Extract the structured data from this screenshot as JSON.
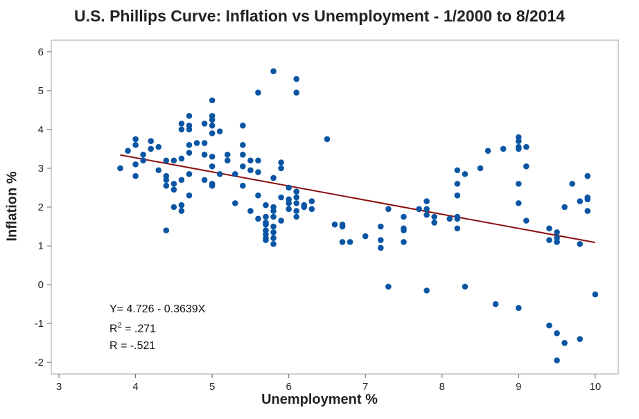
{
  "chart_data": {
    "type": "scatter",
    "title": "U.S. Phillips Curve: Inflation vs Unemployment - 1/2000 to 8/2014",
    "xlabel": "Unemployment %",
    "ylabel": "Inflation %",
    "xlim": [
      2.9,
      10.3
    ],
    "ylim": [
      -2.3,
      6.3
    ],
    "xticks": [
      3,
      4,
      5,
      6,
      7,
      8,
      9,
      10
    ],
    "yticks": [
      -2,
      -1,
      0,
      1,
      2,
      3,
      4,
      5,
      6
    ],
    "grid": false,
    "colors": {
      "points": "#0a55a3",
      "fit": "#8b1010",
      "frame": "#a0a0a0"
    },
    "fit_line": {
      "intercept": 4.726,
      "slope": -0.3639,
      "x_range": [
        3.8,
        10.0
      ],
      "equation": "Y= 4.726 - 0.3639X"
    },
    "stats": {
      "r2_label": "R",
      "r2_sup": "2",
      "r2_value": " = .271",
      "r_text": "R  = -.521"
    },
    "points": [
      [
        3.8,
        3.0
      ],
      [
        3.9,
        3.45
      ],
      [
        4.0,
        3.75
      ],
      [
        4.0,
        3.6
      ],
      [
        4.0,
        3.1
      ],
      [
        4.0,
        2.8
      ],
      [
        4.1,
        3.35
      ],
      [
        4.1,
        3.2
      ],
      [
        4.2,
        3.7
      ],
      [
        4.2,
        3.5
      ],
      [
        4.3,
        3.55
      ],
      [
        4.3,
        2.95
      ],
      [
        4.4,
        3.2
      ],
      [
        4.4,
        2.8
      ],
      [
        4.4,
        2.7
      ],
      [
        4.4,
        2.55
      ],
      [
        4.4,
        1.4
      ],
      [
        4.5,
        3.2
      ],
      [
        4.5,
        2.6
      ],
      [
        4.5,
        2.45
      ],
      [
        4.5,
        2.0
      ],
      [
        4.6,
        4.15
      ],
      [
        4.6,
        4.0
      ],
      [
        4.6,
        3.25
      ],
      [
        4.6,
        2.7
      ],
      [
        4.6,
        2.05
      ],
      [
        4.6,
        1.9
      ],
      [
        4.7,
        4.35
      ],
      [
        4.7,
        4.1
      ],
      [
        4.7,
        4.0
      ],
      [
        4.7,
        3.6
      ],
      [
        4.7,
        3.4
      ],
      [
        4.7,
        2.85
      ],
      [
        4.7,
        2.3
      ],
      [
        4.8,
        3.65
      ],
      [
        4.9,
        4.15
      ],
      [
        4.9,
        3.65
      ],
      [
        4.9,
        3.35
      ],
      [
        4.9,
        2.7
      ],
      [
        5.0,
        4.75
      ],
      [
        5.0,
        4.35
      ],
      [
        5.0,
        4.25
      ],
      [
        5.0,
        4.1
      ],
      [
        5.0,
        3.9
      ],
      [
        5.0,
        3.3
      ],
      [
        5.0,
        3.05
      ],
      [
        5.0,
        2.6
      ],
      [
        5.0,
        2.55
      ],
      [
        5.1,
        3.95
      ],
      [
        5.1,
        2.85
      ],
      [
        5.2,
        3.35
      ],
      [
        5.2,
        3.2
      ],
      [
        5.3,
        2.85
      ],
      [
        5.3,
        2.1
      ],
      [
        5.4,
        4.1
      ],
      [
        5.4,
        3.6
      ],
      [
        5.4,
        3.35
      ],
      [
        5.4,
        3.05
      ],
      [
        5.4,
        2.55
      ],
      [
        5.5,
        3.2
      ],
      [
        5.5,
        2.95
      ],
      [
        5.5,
        1.9
      ],
      [
        5.6,
        4.95
      ],
      [
        5.6,
        3.2
      ],
      [
        5.6,
        2.9
      ],
      [
        5.6,
        2.3
      ],
      [
        5.6,
        1.7
      ],
      [
        5.7,
        2.05
      ],
      [
        5.7,
        1.75
      ],
      [
        5.7,
        1.6
      ],
      [
        5.7,
        1.55
      ],
      [
        5.7,
        1.4
      ],
      [
        5.7,
        1.3
      ],
      [
        5.7,
        1.2
      ],
      [
        5.7,
        1.15
      ],
      [
        5.8,
        5.5
      ],
      [
        5.8,
        2.75
      ],
      [
        5.8,
        2.0
      ],
      [
        5.8,
        1.9
      ],
      [
        5.8,
        1.75
      ],
      [
        5.8,
        1.5
      ],
      [
        5.8,
        1.35
      ],
      [
        5.8,
        1.2
      ],
      [
        5.8,
        1.05
      ],
      [
        5.9,
        3.15
      ],
      [
        5.9,
        3.0
      ],
      [
        5.9,
        2.25
      ],
      [
        5.9,
        1.65
      ],
      [
        6.0,
        2.5
      ],
      [
        6.0,
        2.2
      ],
      [
        6.0,
        2.1
      ],
      [
        6.0,
        1.95
      ],
      [
        6.1,
        5.3
      ],
      [
        6.1,
        4.95
      ],
      [
        6.1,
        2.4
      ],
      [
        6.1,
        2.25
      ],
      [
        6.1,
        2.1
      ],
      [
        6.1,
        1.9
      ],
      [
        6.1,
        1.75
      ],
      [
        6.2,
        2.05
      ],
      [
        6.2,
        2.0
      ],
      [
        6.3,
        2.15
      ],
      [
        6.3,
        1.95
      ],
      [
        6.5,
        3.75
      ],
      [
        6.6,
        1.55
      ],
      [
        6.7,
        1.55
      ],
      [
        6.7,
        1.5
      ],
      [
        6.7,
        1.1
      ],
      [
        6.8,
        1.1
      ],
      [
        7.0,
        1.25
      ],
      [
        7.2,
        1.5
      ],
      [
        7.2,
        1.15
      ],
      [
        7.2,
        0.95
      ],
      [
        7.3,
        1.95
      ],
      [
        7.3,
        -0.05
      ],
      [
        7.5,
        1.75
      ],
      [
        7.5,
        1.45
      ],
      [
        7.5,
        1.4
      ],
      [
        7.5,
        1.1
      ],
      [
        7.7,
        1.95
      ],
      [
        7.8,
        2.15
      ],
      [
        7.8,
        1.95
      ],
      [
        7.8,
        1.8
      ],
      [
        7.8,
        -0.15
      ],
      [
        7.9,
        1.75
      ],
      [
        7.9,
        1.6
      ],
      [
        8.1,
        1.7
      ],
      [
        8.2,
        2.95
      ],
      [
        8.2,
        2.6
      ],
      [
        8.2,
        2.3
      ],
      [
        8.2,
        1.75
      ],
      [
        8.2,
        1.7
      ],
      [
        8.2,
        1.45
      ],
      [
        8.3,
        2.85
      ],
      [
        8.3,
        -0.05
      ],
      [
        8.5,
        3.0
      ],
      [
        8.6,
        3.45
      ],
      [
        8.7,
        -0.5
      ],
      [
        8.8,
        3.5
      ],
      [
        9.0,
        3.8
      ],
      [
        9.0,
        3.7
      ],
      [
        9.0,
        3.55
      ],
      [
        9.0,
        3.5
      ],
      [
        9.0,
        2.6
      ],
      [
        9.0,
        2.1
      ],
      [
        9.0,
        -0.6
      ],
      [
        9.1,
        3.55
      ],
      [
        9.1,
        3.05
      ],
      [
        9.1,
        1.65
      ],
      [
        9.4,
        1.45
      ],
      [
        9.4,
        1.15
      ],
      [
        9.4,
        -1.05
      ],
      [
        9.5,
        1.35
      ],
      [
        9.5,
        1.2
      ],
      [
        9.5,
        1.1
      ],
      [
        9.5,
        -1.25
      ],
      [
        9.5,
        -1.95
      ],
      [
        9.6,
        2.0
      ],
      [
        9.6,
        -1.5
      ],
      [
        9.7,
        2.6
      ],
      [
        9.8,
        2.15
      ],
      [
        9.8,
        1.05
      ],
      [
        9.8,
        -1.4
      ],
      [
        9.9,
        2.8
      ],
      [
        9.9,
        2.25
      ],
      [
        9.9,
        2.2
      ],
      [
        9.9,
        1.9
      ],
      [
        10.0,
        -0.25
      ]
    ]
  }
}
